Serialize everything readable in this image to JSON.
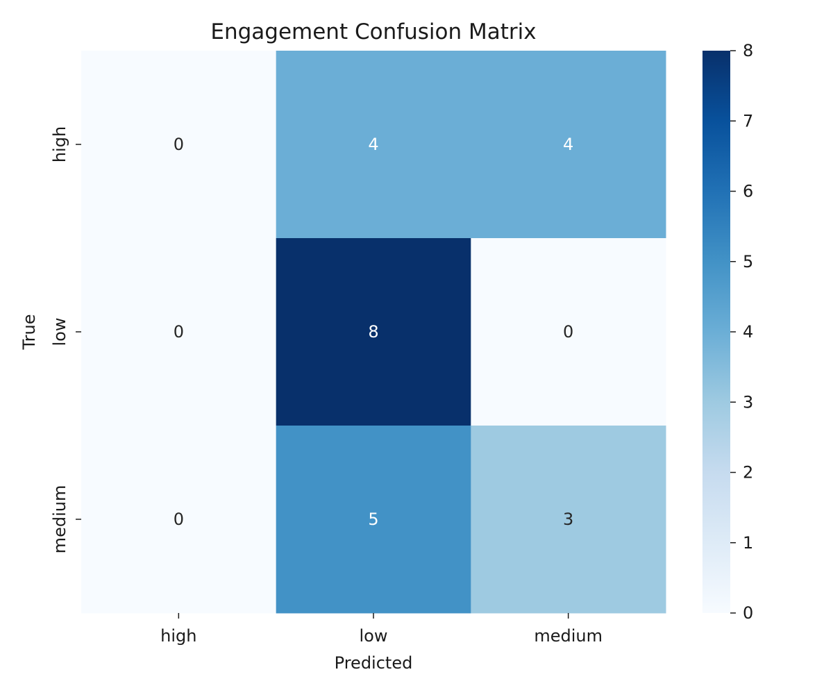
{
  "chart_data": {
    "type": "heatmap",
    "title": "Engagement Confusion Matrix",
    "xlabel": "Predicted",
    "ylabel": "True",
    "x_categories": [
      "high",
      "low",
      "medium"
    ],
    "y_categories": [
      "high",
      "low",
      "medium"
    ],
    "values": [
      [
        0,
        4,
        4
      ],
      [
        0,
        8,
        0
      ],
      [
        0,
        5,
        3
      ]
    ],
    "colorbar": {
      "min": 0,
      "max": 8,
      "ticks": [
        "0",
        "1",
        "2",
        "3",
        "4",
        "5",
        "6",
        "7",
        "8"
      ]
    },
    "colormap": "Blues",
    "colors": {
      "low_end": "#f7fbff",
      "high_end": "#08306b",
      "text_dark": "#262626",
      "text_light": "#ffffff"
    }
  }
}
